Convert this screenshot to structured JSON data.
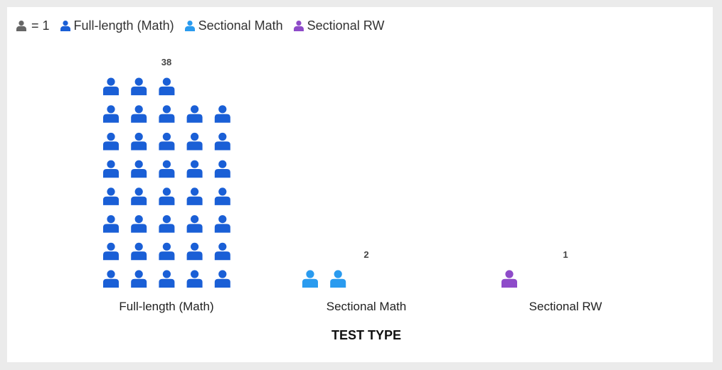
{
  "legend": {
    "unit_label": "= 1",
    "unit_color": "#666666",
    "items": [
      {
        "label": "Full-length (Math)",
        "color": "#1a5fd6"
      },
      {
        "label": "Sectional Math",
        "color": "#2a9bef"
      },
      {
        "label": "Sectional RW",
        "color": "#8e4bc9"
      }
    ]
  },
  "chart_data": {
    "type": "pictogram",
    "unit_value": 1,
    "icon": "person-icon",
    "icons_per_row": 5,
    "categories": [
      "Full-length (Math)",
      "Sectional Math",
      "Sectional RW"
    ],
    "values": [
      38,
      2,
      1
    ],
    "colors": [
      "#1a5fd6",
      "#2a9bef",
      "#8e4bc9"
    ],
    "xlabel": "TEST TYPE",
    "ylabel": "",
    "grid": false,
    "legend_position": "top-left"
  }
}
